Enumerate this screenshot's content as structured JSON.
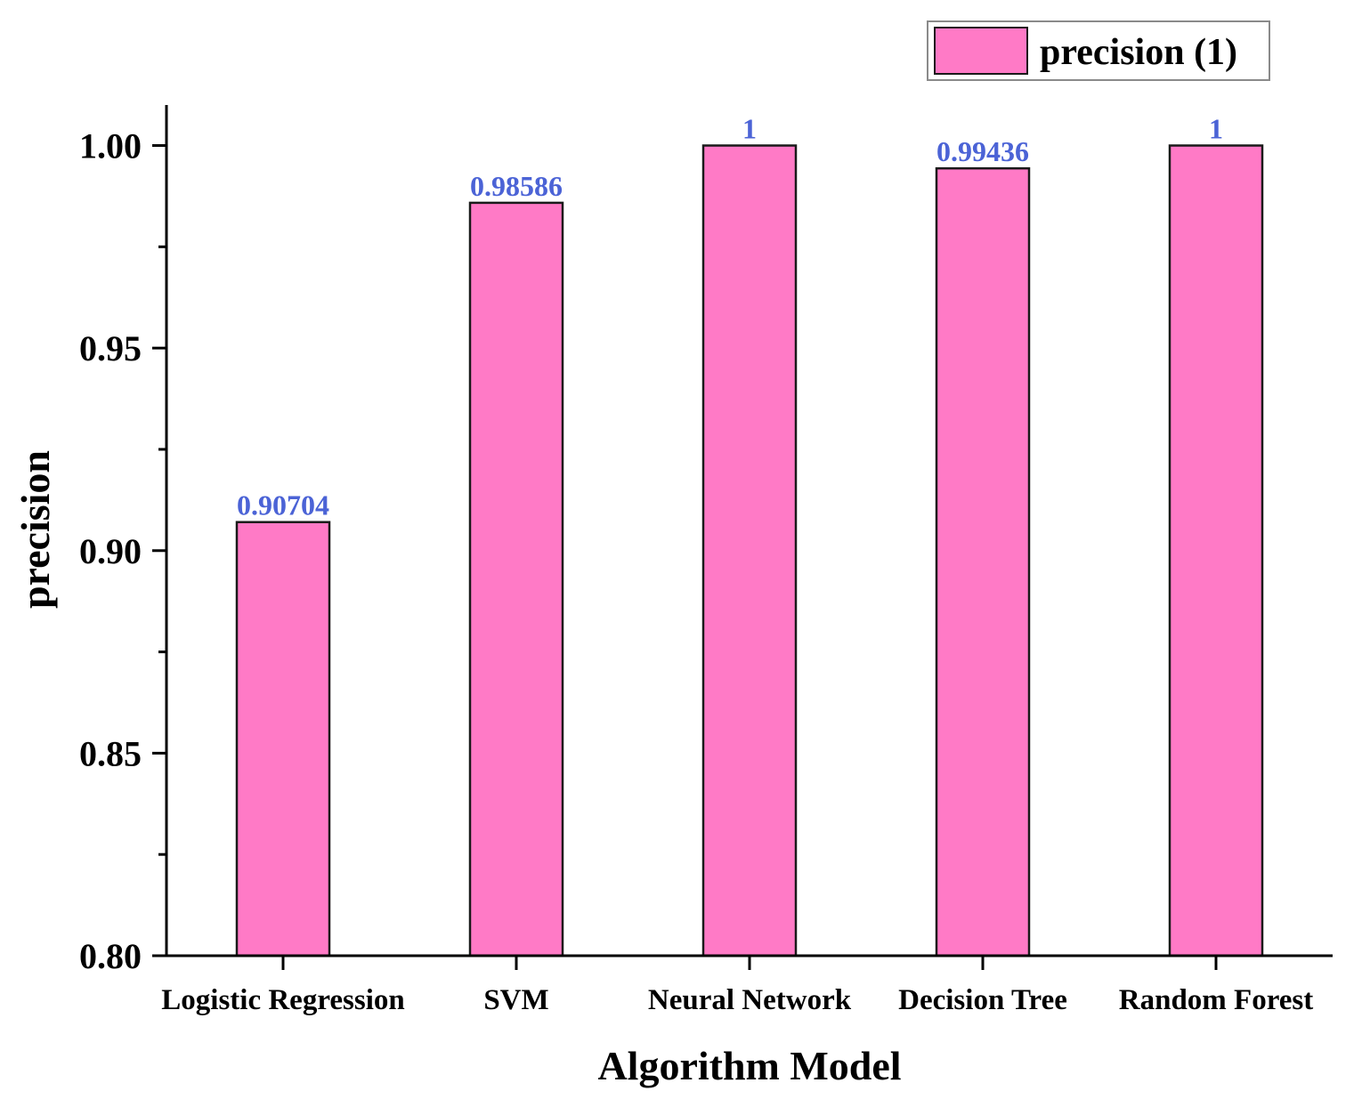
{
  "chart_data": {
    "type": "bar",
    "title": "",
    "xlabel": "Algorithm Model",
    "ylabel": "precision",
    "categories": [
      "Logistic Regression",
      "SVM",
      "Neural Network",
      "Decision Tree",
      "Random Forest"
    ],
    "series": [
      {
        "name": "precision (1)",
        "values": [
          0.90704,
          0.98586,
          1,
          0.99436,
          1
        ],
        "labels": [
          "0.90704",
          "0.98586",
          "1",
          "0.99436",
          "1"
        ]
      }
    ],
    "ylim": [
      0.8,
      1.01
    ],
    "yticks": [
      0.8,
      0.85,
      0.9,
      0.95,
      1.0
    ],
    "ytick_labels": [
      "0.80",
      "0.85",
      "0.90",
      "0.95",
      "1.00"
    ],
    "legend": {
      "position": "top-right",
      "entries": [
        "precision (1)"
      ]
    },
    "grid": false,
    "colors": {
      "bar_fill": "#ff7ac6",
      "bar_stroke": "#1a1a1a",
      "data_label": "#4b63d6",
      "axis": "#000000",
      "text": "#000000"
    }
  }
}
